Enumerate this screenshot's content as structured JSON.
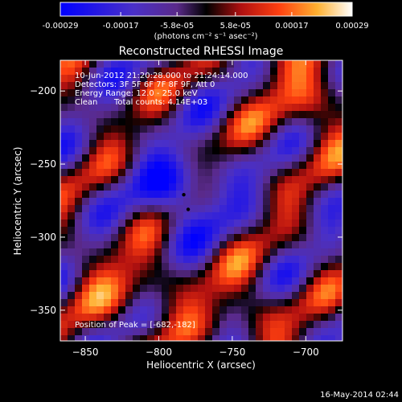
{
  "chart_data": {
    "type": "heatmap",
    "title": "Reconstructed RHESSI Image",
    "xlabel": "Heliocentric X (arcsec)",
    "ylabel": "Heliocentric Y (arcsec)",
    "xlim": [
      -867,
      -675
    ],
    "ylim": [
      -371,
      -179
    ],
    "xticks": [
      -850,
      -800,
      -750,
      -700
    ],
    "yticks": [
      -200,
      -250,
      -300,
      -350
    ],
    "colorbar": {
      "min": -0.00029,
      "max": 0.00029,
      "tick_values": [
        -0.00029,
        -0.00017,
        -5.8e-05,
        5.8e-05,
        0.00017,
        0.00029
      ],
      "tick_labels": [
        "-0.00029",
        "-0.00017",
        "-5.8e-05",
        "5.8e-05",
        "0.00017",
        "0.00029"
      ],
      "units_text": "(photons cm⁻² s⁻¹ asec⁻²)"
    },
    "annotations": {
      "time_range": "10-Jun-2012 21:20:28.000 to 21:24:14.000",
      "detectors": "Detectors: 3F 5F 6F 7F 8F 9F, Att 0",
      "energy": "Energy Range: 12.0 - 25.0 keV",
      "method": "Clean",
      "counts": "Total counts: 4.14E+03",
      "peak": "Position of Peak = [-682,-182]"
    },
    "markers": [
      {
        "x": -783,
        "y": -271
      },
      {
        "x": -780,
        "y": -281
      }
    ]
  },
  "footer": {
    "date": "16-May-2014 02:44"
  }
}
